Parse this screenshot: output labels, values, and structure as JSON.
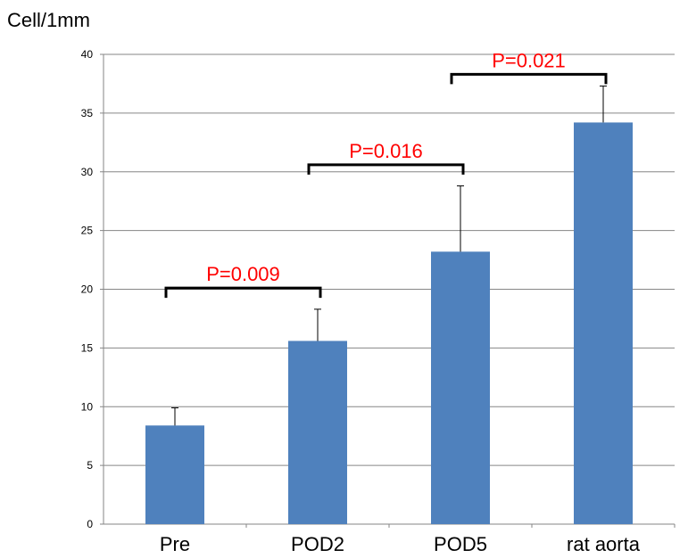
{
  "chart_data": {
    "type": "bar",
    "title": "",
    "xlabel": "",
    "ylabel": "Cell/1mm",
    "categories": [
      "Pre",
      "POD2",
      "POD5",
      "rat aorta"
    ],
    "values": [
      8.4,
      15.6,
      23.2,
      34.2
    ],
    "error_upper": [
      1.5,
      2.7,
      5.6,
      3.1
    ],
    "ylim": [
      0,
      40
    ],
    "yticks": [
      0,
      5,
      10,
      15,
      20,
      25,
      30,
      35,
      40
    ],
    "grid": true,
    "legend": "none",
    "colors": {
      "bar": "#4f81bd",
      "grid": "#868686",
      "annotation": "#ff0000",
      "bracket": "#000000"
    },
    "annotations": [
      {
        "from": 0,
        "to": 1,
        "text": "P=0.009",
        "y": 20.1
      },
      {
        "from": 1,
        "to": 2,
        "text": "P=0.016",
        "y": 30.6
      },
      {
        "from": 2,
        "to": 3,
        "text": "P=0.021",
        "y": 38.3
      }
    ]
  }
}
